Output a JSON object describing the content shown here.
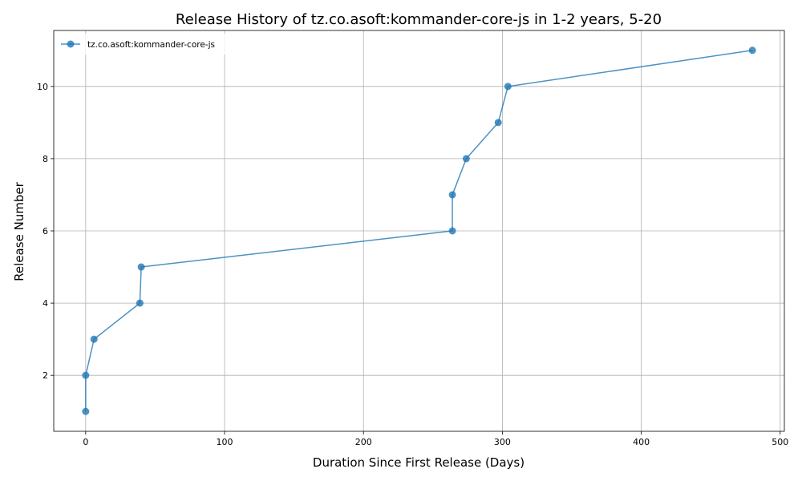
{
  "chart_data": {
    "type": "line",
    "title": "Release History of tz.co.asoft:kommander-core-js in 1-2 years, 5-20",
    "xlabel": "Duration Since First Release (Days)",
    "ylabel": "Release Number",
    "xlim": [
      -23,
      503
    ],
    "ylim": [
      0.45,
      11.55
    ],
    "xticks": [
      0,
      100,
      200,
      300,
      400,
      500
    ],
    "yticks": [
      2,
      4,
      6,
      8,
      10
    ],
    "grid": true,
    "legend_position": "top-left",
    "series": [
      {
        "name": "tz.co.asoft:kommander-core-js",
        "color": "#1f77b4",
        "x": [
          0,
          0,
          6,
          39,
          40,
          264,
          264,
          274,
          297,
          304,
          480
        ],
        "y": [
          1,
          2,
          3,
          4,
          5,
          6,
          7,
          8,
          9,
          10,
          11
        ]
      }
    ]
  }
}
